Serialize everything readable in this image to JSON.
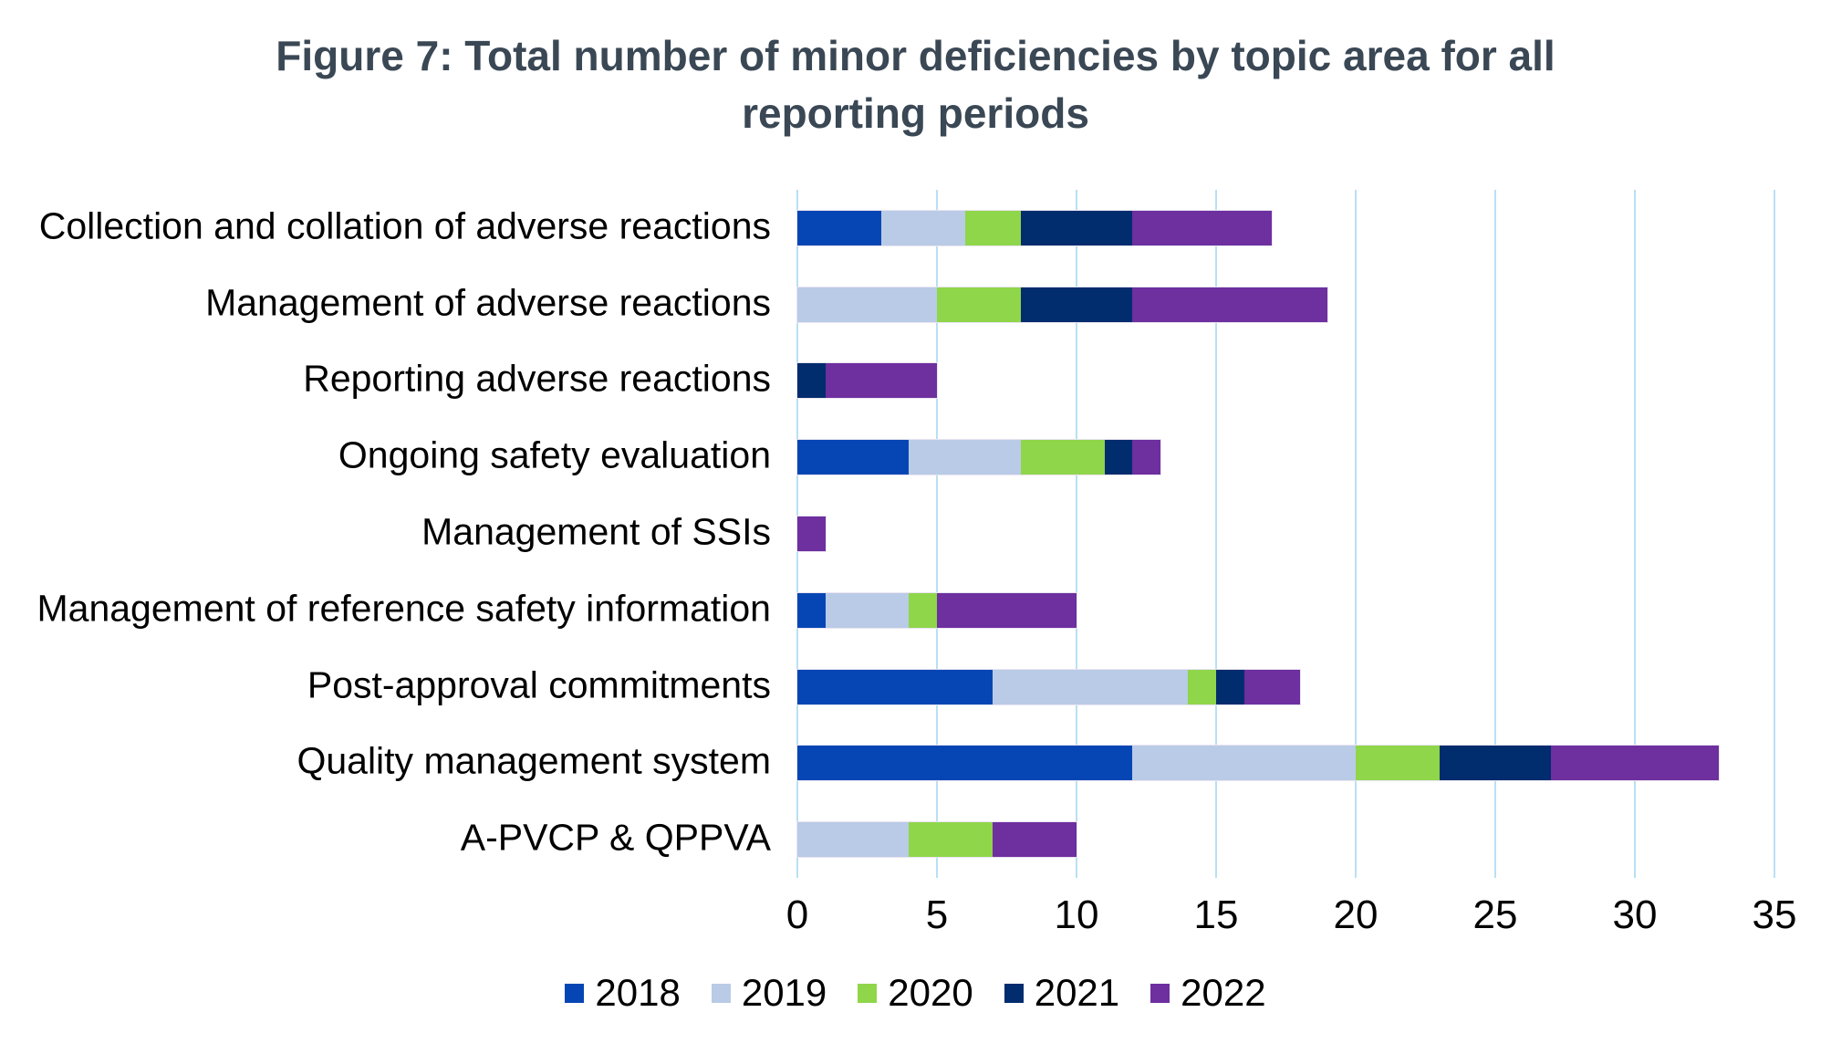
{
  "figure": {
    "title": "Figure 7: Total number of minor deficiencies by topic area for all reporting periods",
    "title_color": "#3a4754",
    "text_color": "#000000",
    "background": "#ffffff"
  },
  "chart_data": {
    "type": "bar",
    "orientation": "horizontal",
    "stacked": true,
    "title": "Figure 7: Total number of minor deficiencies by topic area for all reporting periods",
    "categories": [
      "Collection and collation of adverse reactions",
      "Management of adverse reactions",
      "Reporting adverse reactions",
      "Ongoing safety evaluation",
      "Management of SSIs",
      "Management of reference safety information",
      "Post-approval commitments",
      "Quality management system",
      "A-PVCP & QPPVA"
    ],
    "series": [
      {
        "name": "2018",
        "color": "#0646b4",
        "values": [
          3,
          0,
          0,
          4,
          0,
          1,
          7,
          12,
          0
        ]
      },
      {
        "name": "2019",
        "color": "#b9cbe6",
        "values": [
          3,
          5,
          0,
          4,
          0,
          3,
          7,
          8,
          4
        ]
      },
      {
        "name": "2020",
        "color": "#8fd64a",
        "values": [
          2,
          3,
          0,
          3,
          0,
          1,
          1,
          3,
          3
        ]
      },
      {
        "name": "2021",
        "color": "#012c6d",
        "values": [
          4,
          4,
          1,
          1,
          0,
          0,
          1,
          4,
          0
        ]
      },
      {
        "name": "2022",
        "color": "#6e2f9f",
        "values": [
          5,
          7,
          4,
          1,
          1,
          5,
          2,
          6,
          3
        ]
      }
    ],
    "totals": [
      17,
      19,
      5,
      13,
      1,
      10,
      18,
      33,
      10
    ],
    "xlabel": "",
    "ylabel": "",
    "xlim": [
      0,
      35
    ],
    "x_ticks": [
      0,
      5,
      10,
      15,
      20,
      25,
      30,
      35
    ],
    "grid": "vertical",
    "gridline_color": "#b9e0f3",
    "legend_position": "bottom"
  }
}
